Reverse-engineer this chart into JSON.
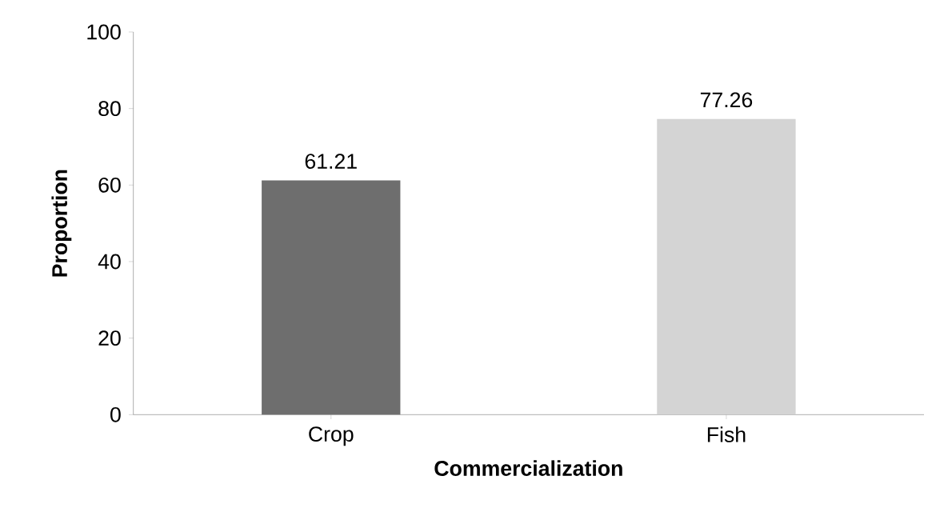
{
  "chart_data": {
    "type": "bar",
    "xlabel": "Commercialization",
    "ylabel": "Proportion",
    "categories": [
      "Crop",
      "Fish"
    ],
    "values": [
      61.21,
      77.26
    ],
    "colors": [
      "#6e6e6e",
      "#d4d4d4"
    ],
    "ylim": [
      0,
      100
    ],
    "yticks": [
      0,
      20,
      40,
      60,
      80,
      100
    ],
    "data_labels": true,
    "grid": false
  }
}
